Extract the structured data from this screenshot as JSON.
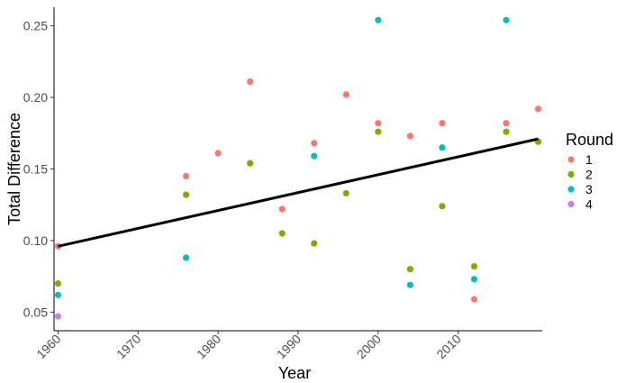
{
  "chart_data": {
    "type": "scatter",
    "title": "",
    "xlabel": "Year",
    "ylabel": "Total Difference",
    "xlim": [
      1959.5,
      2020.5
    ],
    "ylim": [
      0.037,
      0.263
    ],
    "x_ticks": [
      1960,
      1970,
      1980,
      1990,
      2000,
      2010
    ],
    "y_ticks": [
      0.05,
      0.1,
      0.15,
      0.2,
      0.25
    ],
    "y_tick_labels": [
      "0.05",
      "0.10",
      "0.15",
      "0.20",
      "0.25"
    ],
    "grid": false,
    "legend": {
      "title": "Round",
      "position": "right"
    },
    "series": [
      {
        "name": "1",
        "color": "#F8766D",
        "points": [
          [
            1960,
            0.096
          ],
          [
            1976,
            0.145
          ],
          [
            1980,
            0.161
          ],
          [
            1984,
            0.211
          ],
          [
            1988,
            0.122
          ],
          [
            1992,
            0.168
          ],
          [
            1996,
            0.202
          ],
          [
            2000,
            0.182
          ],
          [
            2004,
            0.173
          ],
          [
            2008,
            0.182
          ],
          [
            2012,
            0.059
          ],
          [
            2016,
            0.182
          ],
          [
            2020,
            0.192
          ]
        ]
      },
      {
        "name": "2",
        "color": "#7CAE00",
        "points": [
          [
            1960,
            0.07
          ],
          [
            1976,
            0.132
          ],
          [
            1984,
            0.154
          ],
          [
            1988,
            0.105
          ],
          [
            1992,
            0.098
          ],
          [
            1996,
            0.133
          ],
          [
            2000,
            0.176
          ],
          [
            2004,
            0.08
          ],
          [
            2008,
            0.124
          ],
          [
            2012,
            0.082
          ],
          [
            2016,
            0.176
          ],
          [
            2020,
            0.169
          ]
        ]
      },
      {
        "name": "3",
        "color": "#00BFC4",
        "points": [
          [
            1960,
            0.062
          ],
          [
            1976,
            0.088
          ],
          [
            1992,
            0.159
          ],
          [
            2000,
            0.254
          ],
          [
            2004,
            0.069
          ],
          [
            2008,
            0.165
          ],
          [
            2012,
            0.073
          ],
          [
            2016,
            0.254
          ]
        ]
      },
      {
        "name": "4",
        "color": "#C77CFF",
        "points": [
          [
            1960,
            0.047
          ]
        ]
      }
    ],
    "trend_line": {
      "color": "#000000",
      "start": [
        1960,
        0.096
      ],
      "end": [
        2020,
        0.171
      ]
    }
  }
}
